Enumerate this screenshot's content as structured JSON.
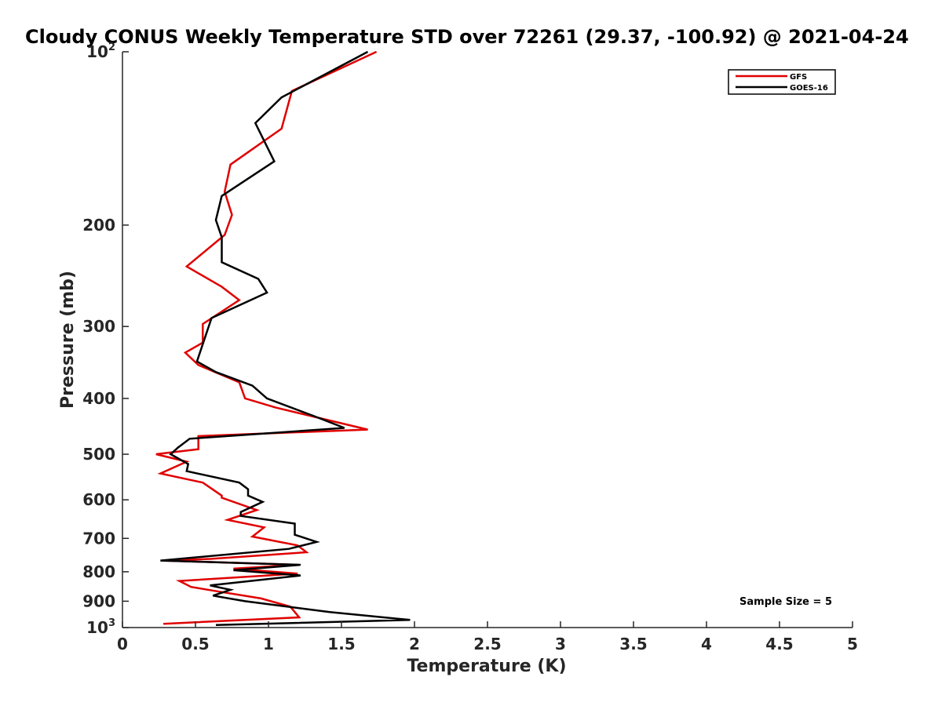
{
  "chart_data": {
    "type": "line",
    "title": "Cloudy CONUS Weekly Temperature STD over 72261 (29.37, -100.92) @ 2021-04-24",
    "xlabel": "Temperature (K)",
    "ylabel": "Pressure (mb)",
    "xlim": [
      0,
      5
    ],
    "ylim": [
      100,
      1000
    ],
    "yscale": "log",
    "y_reversed": true,
    "x_ticks": [
      "0",
      "0.5",
      "1",
      "1.5",
      "2",
      "2.5",
      "3",
      "3.5",
      "4",
      "4.5",
      "5"
    ],
    "y_ticks": [
      {
        "value": 100,
        "base": "10",
        "exp": "2"
      },
      {
        "value": 200,
        "label": "200"
      },
      {
        "value": 300,
        "label": "300"
      },
      {
        "value": 400,
        "label": "400"
      },
      {
        "value": 500,
        "label": "500"
      },
      {
        "value": 600,
        "label": "600"
      },
      {
        "value": 700,
        "label": "700"
      },
      {
        "value": 800,
        "label": "800"
      },
      {
        "value": 900,
        "label": "900"
      },
      {
        "value": 1000,
        "base": "10",
        "exp": "3"
      }
    ],
    "grid": false,
    "legend_position": "top-right",
    "annotation": "Sample Size = 5",
    "series": [
      {
        "name": "GFS",
        "color": "#e00000",
        "points": [
          [
            1.74,
            100
          ],
          [
            1.16,
            117
          ],
          [
            1.09,
            136
          ],
          [
            0.74,
            157
          ],
          [
            0.7,
            175
          ],
          [
            0.75,
            192
          ],
          [
            0.7,
            208
          ],
          [
            0.44,
            236
          ],
          [
            0.68,
            256
          ],
          [
            0.8,
            270
          ],
          [
            0.55,
            297
          ],
          [
            0.55,
            320
          ],
          [
            0.43,
            333
          ],
          [
            0.52,
            350
          ],
          [
            0.8,
            375
          ],
          [
            0.84,
            400
          ],
          [
            1.05,
            415
          ],
          [
            1.68,
            453
          ],
          [
            0.52,
            465
          ],
          [
            0.52,
            490
          ],
          [
            0.23,
            500
          ],
          [
            0.44,
            515
          ],
          [
            0.26,
            540
          ],
          [
            0.55,
            560
          ],
          [
            0.68,
            590
          ],
          [
            0.68,
            595
          ],
          [
            0.92,
            625
          ],
          [
            0.72,
            650
          ],
          [
            0.97,
            670
          ],
          [
            0.89,
            695
          ],
          [
            1.2,
            720
          ],
          [
            1.26,
            740
          ],
          [
            0.6,
            760
          ],
          [
            0.28,
            765
          ],
          [
            1.2,
            778
          ],
          [
            0.76,
            790
          ],
          [
            1.2,
            806
          ],
          [
            0.39,
            830
          ],
          [
            0.47,
            850
          ],
          [
            0.65,
            865
          ],
          [
            0.95,
            890
          ],
          [
            1.15,
            920
          ],
          [
            1.21,
            960
          ],
          [
            0.28,
            985
          ]
        ]
      },
      {
        "name": "GOES-16",
        "color": "#000000",
        "points": [
          [
            1.68,
            100
          ],
          [
            1.09,
            120
          ],
          [
            0.91,
            133
          ],
          [
            1.04,
            155
          ],
          [
            0.68,
            178
          ],
          [
            0.64,
            196
          ],
          [
            0.68,
            210
          ],
          [
            0.68,
            232
          ],
          [
            0.93,
            248
          ],
          [
            0.99,
            262
          ],
          [
            0.61,
            290
          ],
          [
            0.51,
            345
          ],
          [
            0.64,
            360
          ],
          [
            0.89,
            380
          ],
          [
            0.99,
            400
          ],
          [
            1.32,
            430
          ],
          [
            1.52,
            450
          ],
          [
            0.46,
            470
          ],
          [
            0.38,
            487
          ],
          [
            0.33,
            500
          ],
          [
            0.45,
            520
          ],
          [
            0.44,
            535
          ],
          [
            0.8,
            560
          ],
          [
            0.86,
            575
          ],
          [
            0.86,
            590
          ],
          [
            0.96,
            605
          ],
          [
            0.81,
            630
          ],
          [
            0.81,
            640
          ],
          [
            1.18,
            660
          ],
          [
            1.18,
            690
          ],
          [
            1.33,
            710
          ],
          [
            1.14,
            730
          ],
          [
            0.26,
            765
          ],
          [
            1.22,
            778
          ],
          [
            0.76,
            795
          ],
          [
            1.22,
            812
          ],
          [
            0.6,
            845
          ],
          [
            0.74,
            860
          ],
          [
            0.62,
            880
          ],
          [
            0.84,
            900
          ],
          [
            1.42,
            940
          ],
          [
            1.97,
            970
          ],
          [
            0.64,
            990
          ]
        ]
      }
    ]
  }
}
